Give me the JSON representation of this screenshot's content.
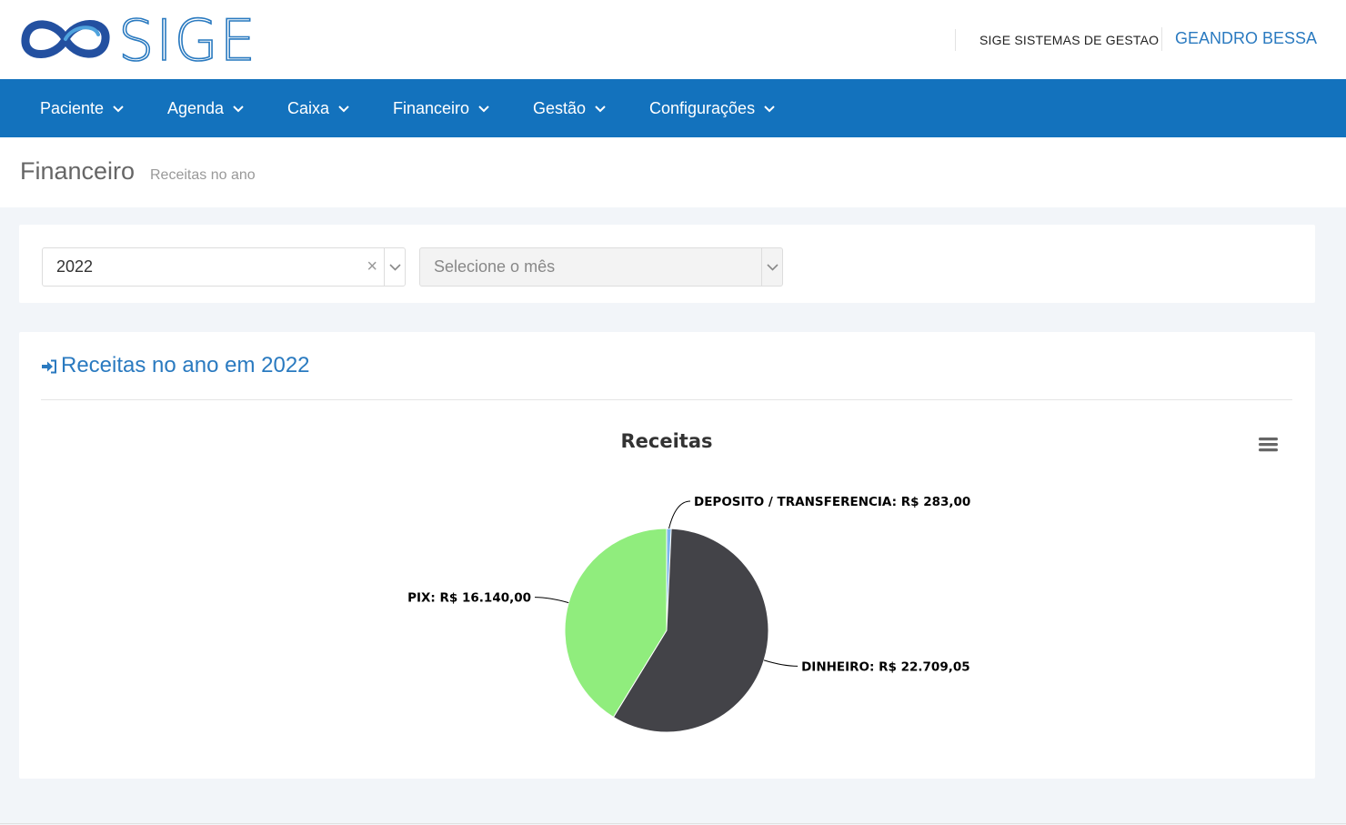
{
  "app": {
    "logo_text": "SIGE",
    "company": "SIGE SISTEMAS DE GESTAO",
    "user": "GEANDRO BESSA",
    "colors": {
      "brand": "#1372bd",
      "link": "#2a7ac0"
    }
  },
  "nav": {
    "items": [
      {
        "label": "Paciente"
      },
      {
        "label": "Agenda"
      },
      {
        "label": "Caixa"
      },
      {
        "label": "Financeiro"
      },
      {
        "label": "Gestão"
      },
      {
        "label": "Configurações"
      }
    ]
  },
  "page": {
    "title": "Financeiro",
    "subtitle": "Receitas no ano"
  },
  "filters": {
    "year": {
      "value": "2022",
      "clear_glyph": "×"
    },
    "month": {
      "placeholder": "Selecione o mês"
    }
  },
  "card": {
    "title": "Receitas no ano em 2022",
    "icon": "sign-in-icon"
  },
  "chart_data": {
    "type": "pie",
    "title": "Receitas",
    "slices": [
      {
        "name": "DEPOSITO / TRANSFERENCIA",
        "value": 283.0,
        "label": "DEPOSITO / TRANSFERENCIA: R$ 283,00",
        "color": "#7cb5ec"
      },
      {
        "name": "DINHEIRO",
        "value": 22709.05,
        "label": "DINHEIRO: R$ 22.709,05",
        "color": "#434348"
      },
      {
        "name": "PIX",
        "value": 16140.0,
        "label": "PIX: R$ 16.140,00",
        "color": "#90ed7d"
      }
    ]
  }
}
